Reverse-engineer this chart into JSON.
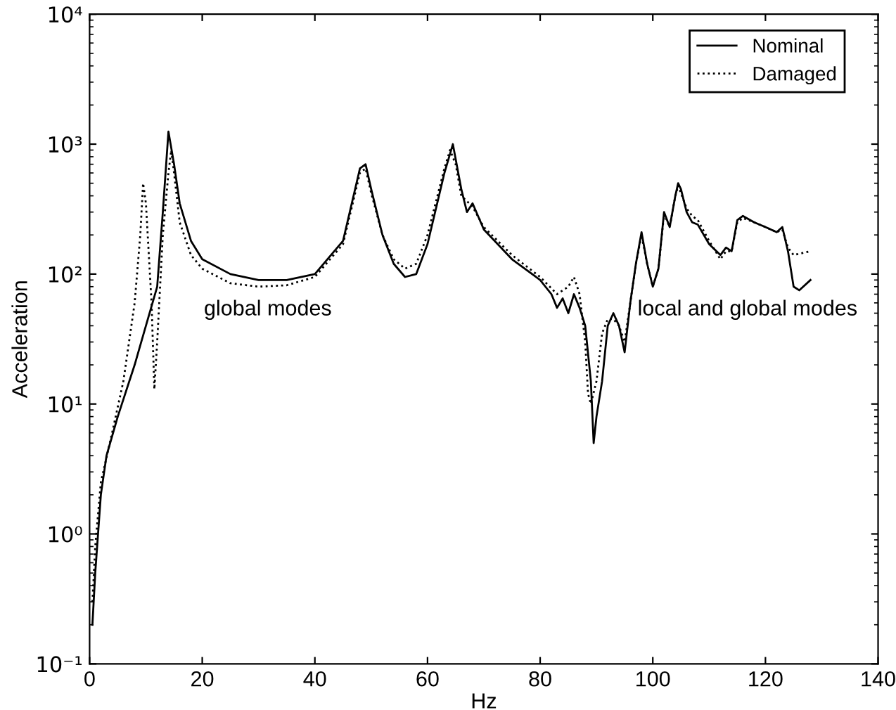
{
  "chart_data": {
    "type": "line",
    "xlabel": "Hz",
    "ylabel": "Acceleration",
    "log": "y",
    "xlim": [
      0,
      140
    ],
    "xticks": [
      0,
      20,
      40,
      60,
      80,
      100,
      120,
      140
    ],
    "ylim": [
      0.1,
      10000
    ],
    "yticks": [
      {
        "value": 0.1,
        "label": "10⁻¹"
      },
      {
        "value": 1,
        "label": "10⁰"
      },
      {
        "value": 10,
        "label": "10¹"
      },
      {
        "value": 100,
        "label": "10²"
      },
      {
        "value": 1000,
        "label": "10³"
      },
      {
        "value": 10000,
        "label": "10⁴"
      }
    ],
    "grid": false,
    "legend": "top right",
    "annotations": [
      "global modes",
      "local and global modes"
    ],
    "series": [
      {
        "name": "Nominal",
        "color": "#000000",
        "line_style": "solid",
        "x": [
          0.5,
          1,
          2,
          3,
          5,
          8,
          10,
          12,
          13,
          14,
          15,
          16,
          18,
          20,
          25,
          30,
          35,
          40,
          45,
          48,
          49,
          50,
          52,
          54,
          56,
          58,
          60,
          63,
          64.5,
          66,
          67,
          68,
          70,
          75,
          80,
          82,
          83,
          84,
          85,
          86,
          87,
          88,
          89,
          89.5,
          90,
          91,
          92,
          93,
          94,
          95,
          96,
          97,
          98,
          99,
          100,
          101,
          102,
          103,
          104,
          104.5,
          105,
          106,
          107,
          108,
          110,
          112,
          113,
          114,
          115,
          116,
          118,
          120,
          122,
          123,
          124,
          125,
          126,
          128
        ],
        "values": [
          0.2,
          0.5,
          2,
          4,
          8,
          20,
          40,
          80,
          300,
          1250,
          700,
          350,
          180,
          130,
          100,
          90,
          90,
          100,
          180,
          650,
          700,
          450,
          200,
          120,
          95,
          100,
          170,
          600,
          1000,
          450,
          300,
          350,
          220,
          130,
          90,
          70,
          55,
          65,
          50,
          70,
          55,
          40,
          15,
          5,
          8,
          15,
          40,
          50,
          40,
          25,
          60,
          120,
          210,
          120,
          80,
          110,
          300,
          230,
          400,
          500,
          450,
          300,
          250,
          240,
          170,
          140,
          160,
          150,
          260,
          280,
          250,
          230,
          210,
          230,
          150,
          80,
          75,
          90
        ]
      },
      {
        "name": "Damaged",
        "color": "#000000",
        "line_style": "dotted",
        "x": [
          0.5,
          1,
          2,
          4,
          6,
          8,
          9,
          9.5,
          10,
          11,
          11.5,
          12,
          13,
          14,
          14.5,
          15,
          16,
          18,
          20,
          25,
          30,
          35,
          40,
          45,
          48,
          49,
          50,
          52,
          54,
          56,
          58,
          60,
          63,
          64,
          65,
          66,
          68,
          70,
          75,
          80,
          83,
          85,
          86,
          87,
          88,
          88.5,
          89,
          90,
          91,
          92,
          93,
          94,
          95,
          96,
          97,
          98,
          99,
          100,
          101,
          102,
          103,
          104,
          104.5,
          105,
          106,
          107,
          108,
          110,
          112,
          113,
          114,
          115,
          116,
          118,
          120,
          122,
          123,
          124,
          125,
          128
        ],
        "values": [
          0.3,
          0.8,
          2.5,
          6,
          15,
          60,
          200,
          500,
          350,
          60,
          13,
          30,
          200,
          600,
          900,
          600,
          250,
          140,
          110,
          85,
          80,
          82,
          95,
          170,
          600,
          650,
          420,
          200,
          130,
          110,
          120,
          200,
          650,
          900,
          700,
          400,
          330,
          230,
          140,
          95,
          70,
          80,
          95,
          70,
          30,
          12,
          10,
          15,
          35,
          45,
          45,
          40,
          30,
          60,
          120,
          200,
          120,
          80,
          110,
          290,
          230,
          400,
          480,
          420,
          320,
          280,
          260,
          180,
          130,
          150,
          150,
          250,
          270,
          250,
          230,
          210,
          220,
          160,
          140,
          150
        ]
      }
    ]
  }
}
